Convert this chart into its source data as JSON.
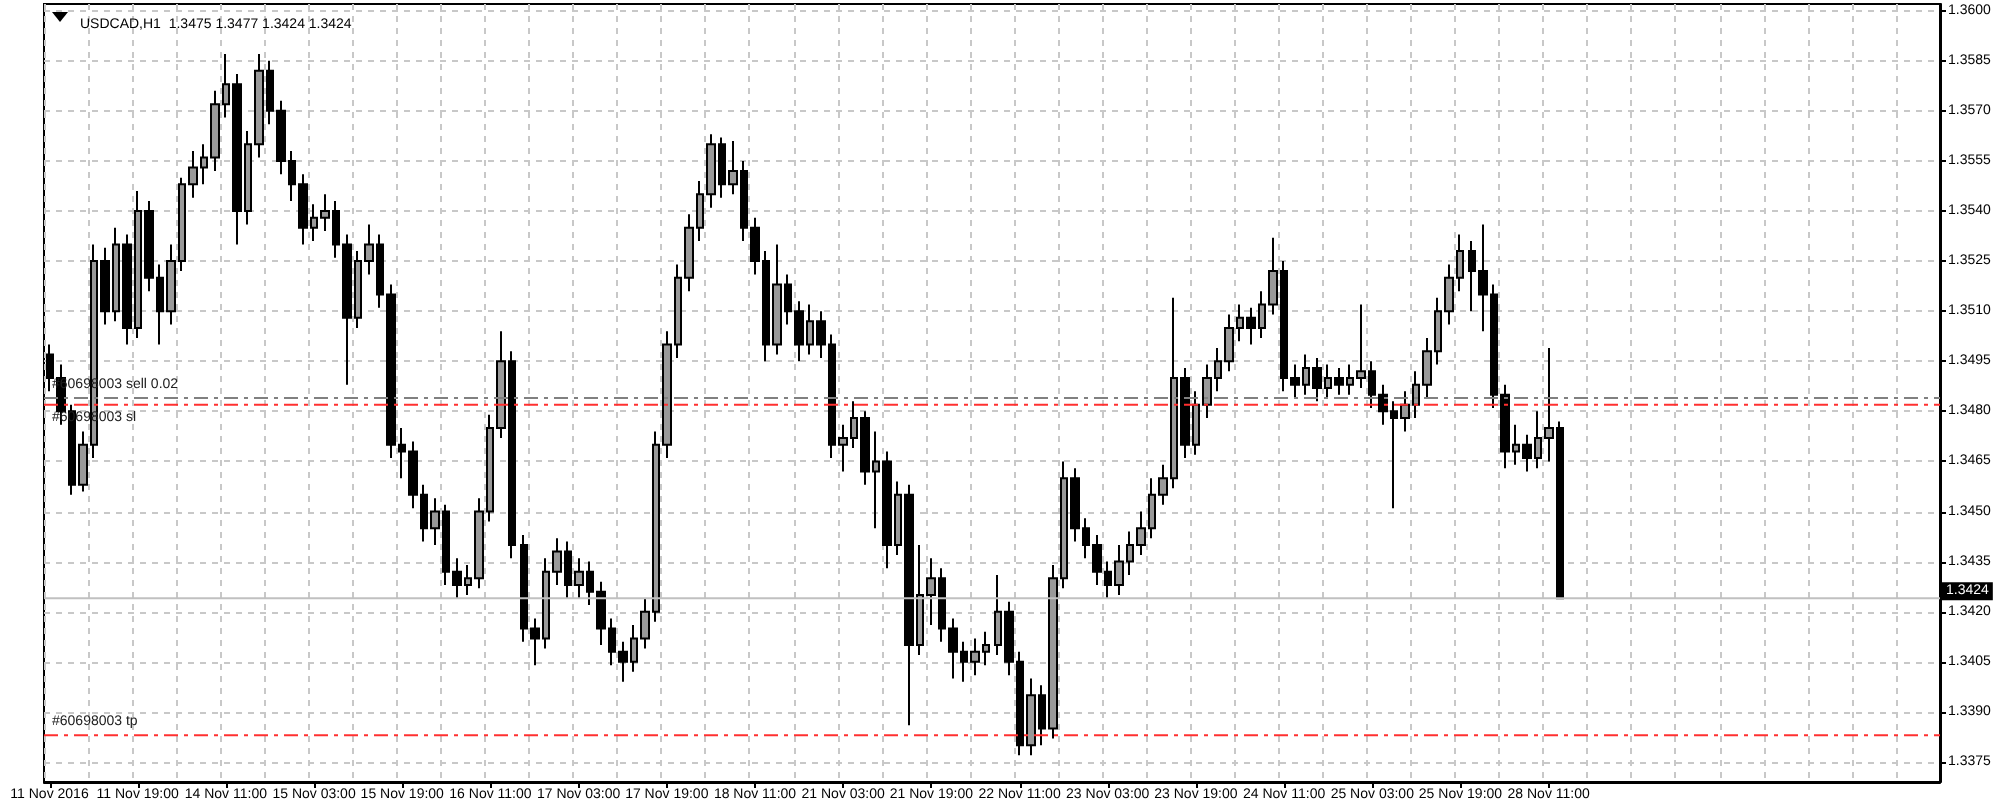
{
  "chart_data": {
    "type": "candlestick",
    "title": "USDCAD,H1  1.3475 1.3477 1.3424 1.3424",
    "categories": [
      "11 Nov 2016",
      null,
      null,
      null,
      null,
      null,
      null,
      null,
      "11 Nov 19:00",
      null,
      null,
      null,
      null,
      null,
      null,
      null,
      "14 Nov 11:00",
      null,
      null,
      null,
      null,
      null,
      null,
      null,
      "15 Nov 03:00",
      null,
      null,
      null,
      null,
      null,
      null,
      null,
      "15 Nov 19:00",
      null,
      null,
      null,
      null,
      null,
      null,
      null,
      "16 Nov 11:00",
      null,
      null,
      null,
      null,
      null,
      null,
      null,
      "17 Nov 03:00",
      null,
      null,
      null,
      null,
      null,
      null,
      null,
      "17 Nov 19:00",
      null,
      null,
      null,
      null,
      null,
      null,
      null,
      "18 Nov 11:00",
      null,
      null,
      null,
      null,
      null,
      null,
      null,
      "21 Nov 03:00",
      null,
      null,
      null,
      null,
      null,
      null,
      null,
      "21 Nov 19:00",
      null,
      null,
      null,
      null,
      null,
      null,
      null,
      "22 Nov 11:00",
      null,
      null,
      null,
      null,
      null,
      null,
      null,
      "23 Nov 03:00",
      null,
      null,
      null,
      null,
      null,
      null,
      null,
      "23 Nov 19:00",
      null,
      null,
      null,
      null,
      null,
      null,
      null,
      "24 Nov 11:00",
      null,
      null,
      null,
      null,
      null,
      null,
      null,
      "25 Nov 03:00",
      null,
      null,
      null,
      null,
      null,
      null,
      null,
      "25 Nov 19:00",
      null,
      null,
      null,
      null,
      null,
      null,
      null,
      "28 Nov 11:00",
      null,
      null,
      null,
      null,
      null,
      null,
      null,
      null,
      null,
      null,
      null,
      null,
      null,
      null,
      null,
      null,
      null,
      null,
      null,
      null,
      null,
      null,
      null,
      null,
      null,
      null,
      null,
      null,
      null,
      null,
      null,
      null,
      null,
      null,
      null
    ],
    "ohlc": [
      [
        1.3497,
        1.35,
        1.3486,
        1.349
      ],
      [
        1.349,
        1.3494,
        1.3476,
        1.348
      ],
      [
        1.348,
        1.3482,
        1.3455,
        1.3458
      ],
      [
        1.3458,
        1.3474,
        1.3456,
        1.347
      ],
      [
        1.347,
        1.353,
        1.3466,
        1.3525
      ],
      [
        1.3525,
        1.3529,
        1.3506,
        1.351
      ],
      [
        1.351,
        1.3535,
        1.3507,
        1.353
      ],
      [
        1.353,
        1.3533,
        1.35,
        1.3505
      ],
      [
        1.3505,
        1.3546,
        1.3502,
        1.354
      ],
      [
        1.354,
        1.3543,
        1.3516,
        1.352
      ],
      [
        1.352,
        1.3524,
        1.35,
        1.351
      ],
      [
        1.351,
        1.353,
        1.3506,
        1.3525
      ],
      [
        1.3525,
        1.355,
        1.3522,
        1.3548
      ],
      [
        1.3548,
        1.3558,
        1.3544,
        1.3553
      ],
      [
        1.3553,
        1.356,
        1.3548,
        1.3556
      ],
      [
        1.3556,
        1.3576,
        1.3552,
        1.3572
      ],
      [
        1.3572,
        1.3587,
        1.3568,
        1.3578
      ],
      [
        1.3578,
        1.3581,
        1.353,
        1.354
      ],
      [
        1.354,
        1.3564,
        1.3536,
        1.356
      ],
      [
        1.356,
        1.3587,
        1.3556,
        1.3582
      ],
      [
        1.3582,
        1.3585,
        1.3566,
        1.357
      ],
      [
        1.357,
        1.3573,
        1.3551,
        1.3555
      ],
      [
        1.3555,
        1.3558,
        1.3543,
        1.3548
      ],
      [
        1.3548,
        1.3551,
        1.353,
        1.3535
      ],
      [
        1.3535,
        1.3542,
        1.3531,
        1.3538
      ],
      [
        1.3538,
        1.3545,
        1.3534,
        1.354
      ],
      [
        1.354,
        1.3543,
        1.3526,
        1.353
      ],
      [
        1.353,
        1.3533,
        1.3488,
        1.3508
      ],
      [
        1.3508,
        1.3528,
        1.3505,
        1.3525
      ],
      [
        1.3525,
        1.3536,
        1.3521,
        1.353
      ],
      [
        1.353,
        1.3533,
        1.3511,
        1.3515
      ],
      [
        1.3515,
        1.3518,
        1.3466,
        1.347
      ],
      [
        1.347,
        1.3475,
        1.346,
        1.3468
      ],
      [
        1.3468,
        1.3471,
        1.3451,
        1.3455
      ],
      [
        1.3455,
        1.3458,
        1.3441,
        1.3445
      ],
      [
        1.3445,
        1.3454,
        1.344,
        1.345
      ],
      [
        1.345,
        1.3452,
        1.3428,
        1.3432
      ],
      [
        1.3432,
        1.3436,
        1.3424,
        1.3428
      ],
      [
        1.3428,
        1.3434,
        1.3425,
        1.343
      ],
      [
        1.343,
        1.3454,
        1.3427,
        1.345
      ],
      [
        1.345,
        1.3479,
        1.3447,
        1.3475
      ],
      [
        1.3475,
        1.3504,
        1.3472,
        1.3495
      ],
      [
        1.3495,
        1.3498,
        1.3436,
        1.344
      ],
      [
        1.344,
        1.3443,
        1.3411,
        1.3415
      ],
      [
        1.3415,
        1.3418,
        1.3404,
        1.3412
      ],
      [
        1.3412,
        1.3436,
        1.3409,
        1.3432
      ],
      [
        1.3432,
        1.3442,
        1.3428,
        1.3438
      ],
      [
        1.3438,
        1.3441,
        1.3424,
        1.3428
      ],
      [
        1.3428,
        1.3436,
        1.3424,
        1.3432
      ],
      [
        1.3432,
        1.3435,
        1.3422,
        1.3426
      ],
      [
        1.3426,
        1.3429,
        1.341,
        1.3415
      ],
      [
        1.3415,
        1.3418,
        1.3404,
        1.3408
      ],
      [
        1.3408,
        1.3411,
        1.3399,
        1.3405
      ],
      [
        1.3405,
        1.3416,
        1.3402,
        1.3412
      ],
      [
        1.3412,
        1.3424,
        1.3409,
        1.342
      ],
      [
        1.342,
        1.3474,
        1.3417,
        1.347
      ],
      [
        1.347,
        1.3504,
        1.3466,
        1.35
      ],
      [
        1.35,
        1.3524,
        1.3496,
        1.352
      ],
      [
        1.352,
        1.3539,
        1.3516,
        1.3535
      ],
      [
        1.3535,
        1.3549,
        1.3531,
        1.3545
      ],
      [
        1.3545,
        1.3563,
        1.3541,
        1.356
      ],
      [
        1.356,
        1.3562,
        1.3544,
        1.3548
      ],
      [
        1.3548,
        1.3561,
        1.3545,
        1.3552
      ],
      [
        1.3552,
        1.3555,
        1.3531,
        1.3535
      ],
      [
        1.3535,
        1.3538,
        1.3521,
        1.3525
      ],
      [
        1.3525,
        1.3528,
        1.3495,
        1.35
      ],
      [
        1.35,
        1.353,
        1.3497,
        1.3518
      ],
      [
        1.3518,
        1.3521,
        1.3506,
        1.351
      ],
      [
        1.351,
        1.3513,
        1.3495,
        1.35
      ],
      [
        1.35,
        1.3512,
        1.3497,
        1.3507
      ],
      [
        1.3507,
        1.351,
        1.3496,
        1.35
      ],
      [
        1.35,
        1.3503,
        1.3466,
        1.347
      ],
      [
        1.347,
        1.3476,
        1.3462,
        1.3472
      ],
      [
        1.3472,
        1.3483,
        1.3469,
        1.3478
      ],
      [
        1.3478,
        1.348,
        1.3458,
        1.3462
      ],
      [
        1.3462,
        1.3474,
        1.3445,
        1.3465
      ],
      [
        1.3465,
        1.3468,
        1.3433,
        1.344
      ],
      [
        1.344,
        1.3459,
        1.3437,
        1.3455
      ],
      [
        1.3455,
        1.3458,
        1.3386,
        1.341
      ],
      [
        1.341,
        1.344,
        1.3407,
        1.3425
      ],
      [
        1.3425,
        1.3436,
        1.3416,
        1.343
      ],
      [
        1.343,
        1.3433,
        1.3411,
        1.3415
      ],
      [
        1.3415,
        1.3418,
        1.34,
        1.3408
      ],
      [
        1.3408,
        1.3411,
        1.3399,
        1.3405
      ],
      [
        1.3405,
        1.3412,
        1.3401,
        1.3408
      ],
      [
        1.3408,
        1.3414,
        1.3404,
        1.341
      ],
      [
        1.341,
        1.3431,
        1.3407,
        1.342
      ],
      [
        1.342,
        1.3423,
        1.3401,
        1.3405
      ],
      [
        1.3405,
        1.3408,
        1.3377,
        1.338
      ],
      [
        1.338,
        1.34,
        1.3377,
        1.3395
      ],
      [
        1.3395,
        1.3398,
        1.338,
        1.3385
      ],
      [
        1.3385,
        1.3434,
        1.3382,
        1.343
      ],
      [
        1.343,
        1.3465,
        1.3427,
        1.346
      ],
      [
        1.346,
        1.3463,
        1.3441,
        1.3445
      ],
      [
        1.3445,
        1.3448,
        1.3436,
        1.344
      ],
      [
        1.344,
        1.3443,
        1.3428,
        1.3432
      ],
      [
        1.3432,
        1.3435,
        1.3424,
        1.3428
      ],
      [
        1.3428,
        1.344,
        1.3425,
        1.3435
      ],
      [
        1.3435,
        1.3444,
        1.3431,
        1.344
      ],
      [
        1.344,
        1.345,
        1.3437,
        1.3445
      ],
      [
        1.3445,
        1.346,
        1.3442,
        1.3455
      ],
      [
        1.3455,
        1.3464,
        1.3452,
        1.346
      ],
      [
        1.346,
        1.3514,
        1.3457,
        1.349
      ],
      [
        1.349,
        1.3493,
        1.3466,
        1.347
      ],
      [
        1.347,
        1.3486,
        1.3467,
        1.3482
      ],
      [
        1.3482,
        1.3494,
        1.3478,
        1.349
      ],
      [
        1.349,
        1.3499,
        1.3486,
        1.3495
      ],
      [
        1.3495,
        1.3509,
        1.3492,
        1.3505
      ],
      [
        1.3505,
        1.3512,
        1.3501,
        1.3508
      ],
      [
        1.3508,
        1.3511,
        1.35,
        1.3505
      ],
      [
        1.3505,
        1.3516,
        1.3502,
        1.3512
      ],
      [
        1.3512,
        1.3532,
        1.3509,
        1.3522
      ],
      [
        1.3522,
        1.3525,
        1.3486,
        1.349
      ],
      [
        1.349,
        1.3494,
        1.3484,
        1.3488
      ],
      [
        1.3488,
        1.3497,
        1.3485,
        1.3493
      ],
      [
        1.3493,
        1.3496,
        1.3483,
        1.3487
      ],
      [
        1.3487,
        1.3494,
        1.3484,
        1.349
      ],
      [
        1.349,
        1.3493,
        1.3485,
        1.3488
      ],
      [
        1.3488,
        1.3494,
        1.3485,
        1.349
      ],
      [
        1.349,
        1.3512,
        1.3487,
        1.3492
      ],
      [
        1.3492,
        1.3495,
        1.3481,
        1.3485
      ],
      [
        1.3485,
        1.3488,
        1.3476,
        1.348
      ],
      [
        1.348,
        1.3483,
        1.3451,
        1.3478
      ],
      [
        1.3478,
        1.3486,
        1.3474,
        1.3482
      ],
      [
        1.3482,
        1.3492,
        1.3478,
        1.3488
      ],
      [
        1.3488,
        1.3502,
        1.3484,
        1.3498
      ],
      [
        1.3498,
        1.3514,
        1.3494,
        1.351
      ],
      [
        1.351,
        1.3524,
        1.3506,
        1.352
      ],
      [
        1.352,
        1.3533,
        1.3516,
        1.3528
      ],
      [
        1.3528,
        1.3531,
        1.351,
        1.3522
      ],
      [
        1.3522,
        1.3536,
        1.3504,
        1.3515
      ],
      [
        1.3515,
        1.3518,
        1.3481,
        1.3485
      ],
      [
        1.3485,
        1.3488,
        1.3463,
        1.3468
      ],
      [
        1.3468,
        1.3476,
        1.3464,
        1.347
      ],
      [
        1.347,
        1.3473,
        1.3462,
        1.3466
      ],
      [
        1.3466,
        1.348,
        1.3463,
        1.3472
      ],
      [
        1.3472,
        1.3499,
        1.3465,
        1.3475
      ],
      [
        1.3475,
        1.3477,
        1.3424,
        1.3424
      ],
      null,
      null,
      null,
      null,
      null,
      null,
      null,
      null,
      null,
      null,
      null,
      null,
      null,
      null,
      null,
      null,
      null,
      null,
      null,
      null,
      null,
      null,
      null,
      null,
      null,
      null,
      null,
      null,
      null,
      null,
      null,
      null,
      null,
      null
    ],
    "colors": [
      "#000000",
      "#000000",
      "#000000",
      "#999999",
      "#999999",
      "#000000",
      "#999999",
      "#000000",
      "#999999",
      "#000000",
      "#000000",
      "#999999",
      "#999999",
      "#999999",
      "#999999",
      "#999999",
      "#999999",
      "#000000",
      "#999999",
      "#999999",
      "#000000",
      "#000000",
      "#000000",
      "#000000",
      "#999999",
      "#999999",
      "#000000",
      "#000000",
      "#999999",
      "#999999",
      "#000000",
      "#000000",
      "#000000",
      "#000000",
      "#000000",
      "#999999",
      "#000000",
      "#000000",
      "#999999",
      "#999999",
      "#999999",
      "#999999",
      "#000000",
      "#000000",
      "#000000",
      "#999999",
      "#999999",
      "#000000",
      "#999999",
      "#000000",
      "#000000",
      "#000000",
      "#000000",
      "#999999",
      "#999999",
      "#999999",
      "#999999",
      "#999999",
      "#999999",
      "#999999",
      "#999999",
      "#000000",
      "#999999",
      "#000000",
      "#000000",
      "#000000",
      "#999999",
      "#000000",
      "#000000",
      "#999999",
      "#000000",
      "#000000",
      "#999999",
      "#999999",
      "#000000",
      "#999999",
      "#000000",
      "#999999",
      "#000000",
      "#999999",
      "#999999",
      "#000000",
      "#000000",
      "#000000",
      "#999999",
      "#999999",
      "#999999",
      "#000000",
      "#000000",
      "#999999",
      "#000000",
      "#999999",
      "#999999",
      "#000000",
      "#000000",
      "#000000",
      "#000000",
      "#999999",
      "#999999",
      "#999999",
      "#999999",
      "#999999",
      "#999999",
      "#000000",
      "#999999",
      "#999999",
      "#999999",
      "#999999",
      "#999999",
      "#000000",
      "#999999",
      "#999999",
      "#000000",
      "#000000",
      "#999999",
      "#000000",
      "#999999",
      "#000000",
      "#999999",
      "#999999",
      "#000000",
      "#000000",
      "#000000",
      "#999999",
      "#999999",
      "#999999",
      "#999999",
      "#999999",
      "#999999",
      "#000000",
      "#000000",
      "#000000",
      "#000000",
      "#999999",
      "#000000",
      "#999999",
      "#999999",
      "#000000",
      null,
      null,
      null,
      null,
      null,
      null,
      null,
      null,
      null,
      null,
      null,
      null,
      null,
      null,
      null,
      null,
      null,
      null,
      null,
      null,
      null,
      null,
      null,
      null,
      null,
      null,
      null,
      null,
      null,
      null,
      null,
      null,
      null,
      null
    ],
    "ylim": [
      1.3369,
      1.3602
    ],
    "yticks": [
      1.3375,
      {
        "value": 1.339,
        "label": "1.3390"
      },
      1.3405,
      {
        "value": 1.342,
        "label": "1.3420"
      },
      1.3435,
      {
        "value": 1.345,
        "label": "1.3450"
      },
      1.3465,
      {
        "value": 1.348,
        "label": "1.3480"
      },
      1.3495,
      {
        "value": 1.351,
        "label": "1.3510"
      },
      1.3525,
      {
        "value": 1.354,
        "label": "1.3540"
      },
      1.3555,
      {
        "value": 1.357,
        "label": "1.3570"
      },
      1.3585,
      {
        "value": 1.36,
        "label": "1.3600"
      }
    ],
    "ref_lines": [
      {
        "axis": "y",
        "value": 1.3484,
        "label": "#60698003 sell 0.02",
        "color": "#808080",
        "line_style": "dashed"
      },
      {
        "axis": "y",
        "value": 1.3482,
        "label": "#60698003 sl",
        "color": "#ff3030",
        "line_style": "dashed"
      },
      {
        "axis": "y",
        "value": 1.3383,
        "label": "#60698003 tp",
        "color": "#ff3030",
        "line_style": "dashed"
      },
      {
        "axis": "y",
        "value": 1.3424,
        "label": "1.3424",
        "color": "#c0c0c0",
        "line_style": "solid"
      }
    ],
    "grid": true
  }
}
